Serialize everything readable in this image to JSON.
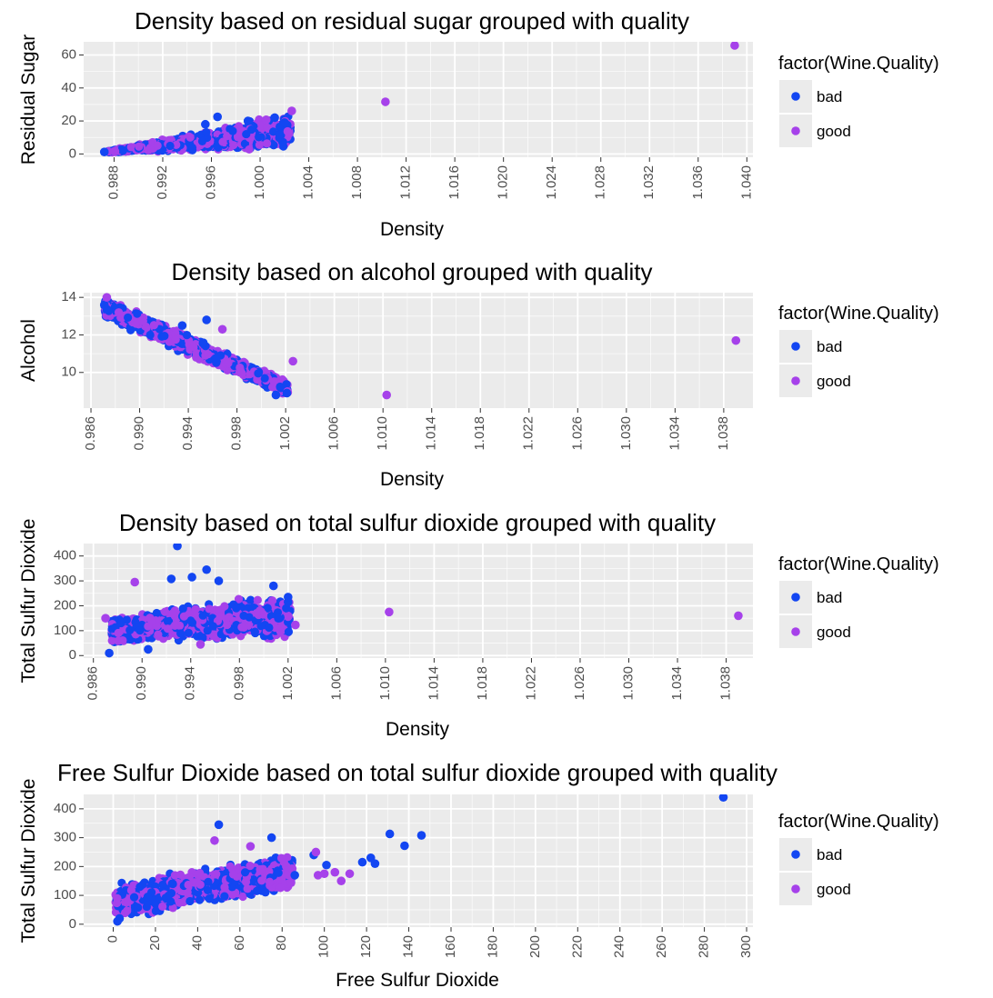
{
  "colors": {
    "bad": "#1346f2",
    "good": "#a641ea",
    "panel": "#ebebeb",
    "grid": "#ffffff",
    "tick_text": "#4d4d4d"
  },
  "legend": {
    "title": "factor(Wine.Quality)",
    "items": [
      "bad",
      "good"
    ]
  },
  "chart_data": [
    {
      "type": "scatter",
      "title": "Density based on residual sugar grouped with quality",
      "xlabel": "Density",
      "ylabel": "Residual Sugar",
      "xlim": [
        0.9855,
        1.0405
      ],
      "ylim": [
        -2,
        68
      ],
      "x_ticks": [
        "0.988",
        "0.992",
        "0.996",
        "1.000",
        "1.004",
        "1.008",
        "1.012",
        "1.016",
        "1.020",
        "1.024",
        "1.028",
        "1.032",
        "1.036",
        "1.040"
      ],
      "y_ticks": [
        "0",
        "20",
        "40",
        "60"
      ],
      "cloud": {
        "x": [
          0.9875,
          1.0025
        ],
        "y_low": [
          0.8,
          1.0
        ],
        "y_high": [
          2,
          26
        ]
      },
      "series": [
        {
          "name": "bad",
          "points": [
            [
              0.9872,
              1.2
            ],
            [
              0.9965,
              22.5
            ],
            [
              1.0012,
              22
            ],
            [
              1.002,
              19
            ],
            [
              0.9955,
              18
            ],
            [
              0.999,
              20
            ]
          ]
        },
        {
          "name": "good",
          "points": [
            [
              1.0103,
              31.6
            ],
            [
              1.039,
              65.8
            ],
            [
              1.0026,
              26.1
            ],
            [
              1.0005,
              20.7
            ]
          ]
        }
      ]
    },
    {
      "type": "scatter",
      "title": "Density based on alcohol grouped with quality",
      "xlabel": "Density",
      "ylabel": "Alcohol",
      "xlim": [
        0.9854,
        1.0404
      ],
      "ylim": [
        8.1,
        14.25
      ],
      "x_ticks": [
        "0.986",
        "0.990",
        "0.994",
        "0.998",
        "1.002",
        "1.006",
        "1.010",
        "1.014",
        "1.018",
        "1.022",
        "1.026",
        "1.030",
        "1.034",
        "1.038"
      ],
      "y_ticks": [
        "10",
        "12",
        "14"
      ],
      "cloud": {
        "x": [
          0.9871,
          1.0022
        ],
        "y_low": [
          12.8,
          8.6
        ],
        "y_high": [
          14.1,
          9.6
        ]
      },
      "series": [
        {
          "name": "bad",
          "points": [
            [
              0.9955,
              12.8
            ],
            [
              0.9935,
              12.5
            ],
            [
              1.0021,
              8.9
            ],
            [
              1.0012,
              8.8
            ],
            [
              0.9871,
              13.6
            ]
          ]
        },
        {
          "name": "good",
          "points": [
            [
              1.0103,
              8.8
            ],
            [
              1.039,
              11.7
            ],
            [
              1.0026,
              10.6
            ],
            [
              0.9968,
              12.3
            ],
            [
              0.9873,
              14.0
            ]
          ]
        }
      ]
    },
    {
      "type": "scatter",
      "title": "Density based on total sulfur dioxide grouped with quality",
      "xlabel": "Density",
      "ylabel": "Total Sulfur Dioxide",
      "xlim": [
        0.9852,
        1.0402
      ],
      "ylim": [
        -10,
        450
      ],
      "x_ticks": [
        "0.986",
        "0.990",
        "0.994",
        "0.998",
        "1.002",
        "1.006",
        "1.010",
        "1.014",
        "1.018",
        "1.022",
        "1.026",
        "1.030",
        "1.034",
        "1.038"
      ],
      "y_ticks": [
        "0",
        "100",
        "200",
        "300",
        "400"
      ],
      "cloud": {
        "x": [
          0.9875,
          1.0022
        ],
        "y_low": [
          40,
          60
        ],
        "y_high": [
          160,
          260
        ]
      },
      "series": [
        {
          "name": "bad",
          "points": [
            [
              0.9929,
              440
            ],
            [
              0.9953,
              345
            ],
            [
              0.9924,
              308
            ],
            [
              0.9941,
              315
            ],
            [
              0.9963,
              300
            ],
            [
              1.0008,
              280
            ],
            [
              1.002,
              215
            ],
            [
              1.002,
              235
            ],
            [
              0.9873,
              10
            ],
            [
              0.9905,
              25
            ],
            [
              1.0012,
              150
            ]
          ]
        },
        {
          "name": "good",
          "points": [
            [
              0.9894,
              295
            ],
            [
              1.0103,
              175
            ],
            [
              1.039,
              160
            ],
            [
              1.0026,
              123
            ],
            [
              0.987,
              150
            ],
            [
              0.9948,
              45
            ]
          ]
        }
      ]
    },
    {
      "type": "scatter",
      "title": "Free Sulfur Dioxide based on total sulfur dioxide grouped with quality",
      "xlabel": "Free Sulfur Dioxide",
      "ylabel": "Total Sulfur Dioxide",
      "xlim": [
        -14,
        303
      ],
      "ylim": [
        -10,
        450
      ],
      "x_ticks": [
        "0",
        "20",
        "40",
        "60",
        "80",
        "100",
        "120",
        "140",
        "160",
        "180",
        "200",
        "220",
        "240",
        "260",
        "280",
        "300"
      ],
      "y_ticks": [
        "0",
        "100",
        "200",
        "300",
        "400"
      ],
      "cloud": {
        "x": [
          1,
          85
        ],
        "y_low": [
          10,
          110
        ],
        "y_high": [
          150,
          250
        ]
      },
      "series": [
        {
          "name": "bad",
          "points": [
            [
              289,
              440
            ],
            [
              146,
              308
            ],
            [
              131,
              313
            ],
            [
              138,
              272
            ],
            [
              118,
              215
            ],
            [
              122,
              230
            ],
            [
              124,
              210
            ],
            [
              101,
              205
            ],
            [
              95,
              240
            ],
            [
              75,
              300
            ],
            [
              50,
              345
            ],
            [
              86,
              170
            ],
            [
              3,
              20
            ],
            [
              2,
              10
            ]
          ]
        },
        {
          "name": "good",
          "points": [
            [
              96,
              250
            ],
            [
              108,
              150
            ],
            [
              112,
              175
            ],
            [
              105,
              180
            ],
            [
              97,
              170
            ],
            [
              100,
              175
            ],
            [
              48,
              290
            ],
            [
              82,
              200
            ],
            [
              65,
              270
            ]
          ]
        }
      ]
    }
  ]
}
